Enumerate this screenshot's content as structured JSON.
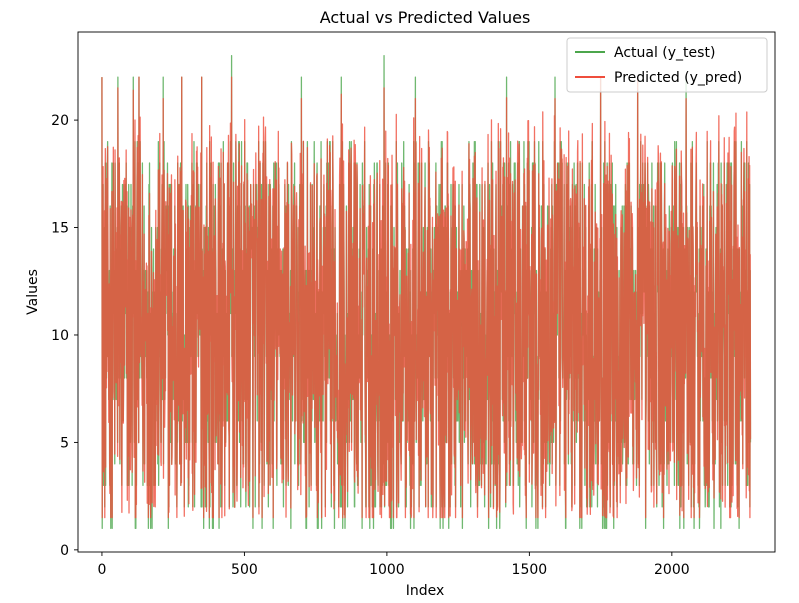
{
  "chart_data": {
    "type": "line",
    "title": "Actual vs Predicted Values",
    "xlabel": "Index",
    "ylabel": "Values",
    "xlim": [
      -84,
      2362
    ],
    "ylim": [
      -0.1,
      24.1
    ],
    "xticks": [
      0,
      500,
      1000,
      1500,
      2000
    ],
    "yticks": [
      0,
      5,
      10,
      15,
      20
    ],
    "grid": false,
    "legend_position": "top-right",
    "n_points": 2277,
    "series": [
      {
        "name": "Actual (y_test)",
        "color": "#4ca64c",
        "alpha": 0.8,
        "value_range": [
          1,
          23
        ],
        "peaks": [
          {
            "x": 0,
            "y": 22
          },
          {
            "x": 56,
            "y": 22
          },
          {
            "x": 110,
            "y": 22
          },
          {
            "x": 130,
            "y": 22
          },
          {
            "x": 215,
            "y": 22
          },
          {
            "x": 280,
            "y": 22
          },
          {
            "x": 350,
            "y": 22
          },
          {
            "x": 455,
            "y": 23
          },
          {
            "x": 700,
            "y": 22
          },
          {
            "x": 840,
            "y": 22
          },
          {
            "x": 990,
            "y": 23
          },
          {
            "x": 1100,
            "y": 22
          },
          {
            "x": 1420,
            "y": 22
          },
          {
            "x": 1590,
            "y": 22
          },
          {
            "x": 1750,
            "y": 22
          },
          {
            "x": 1880,
            "y": 22
          },
          {
            "x": 2050,
            "y": 22
          },
          {
            "x": 2220,
            "y": 19
          }
        ]
      },
      {
        "name": "Predicted (y_pred)",
        "color": "#ef4d3c",
        "alpha": 0.8,
        "value_range": [
          1.5,
          22
        ],
        "peaks": [
          {
            "x": 56,
            "y": 21.5
          },
          {
            "x": 215,
            "y": 21
          },
          {
            "x": 455,
            "y": 22
          },
          {
            "x": 700,
            "y": 21
          },
          {
            "x": 990,
            "y": 21.5
          },
          {
            "x": 1100,
            "y": 21
          },
          {
            "x": 1590,
            "y": 21
          },
          {
            "x": 2050,
            "y": 21
          }
        ]
      }
    ]
  }
}
